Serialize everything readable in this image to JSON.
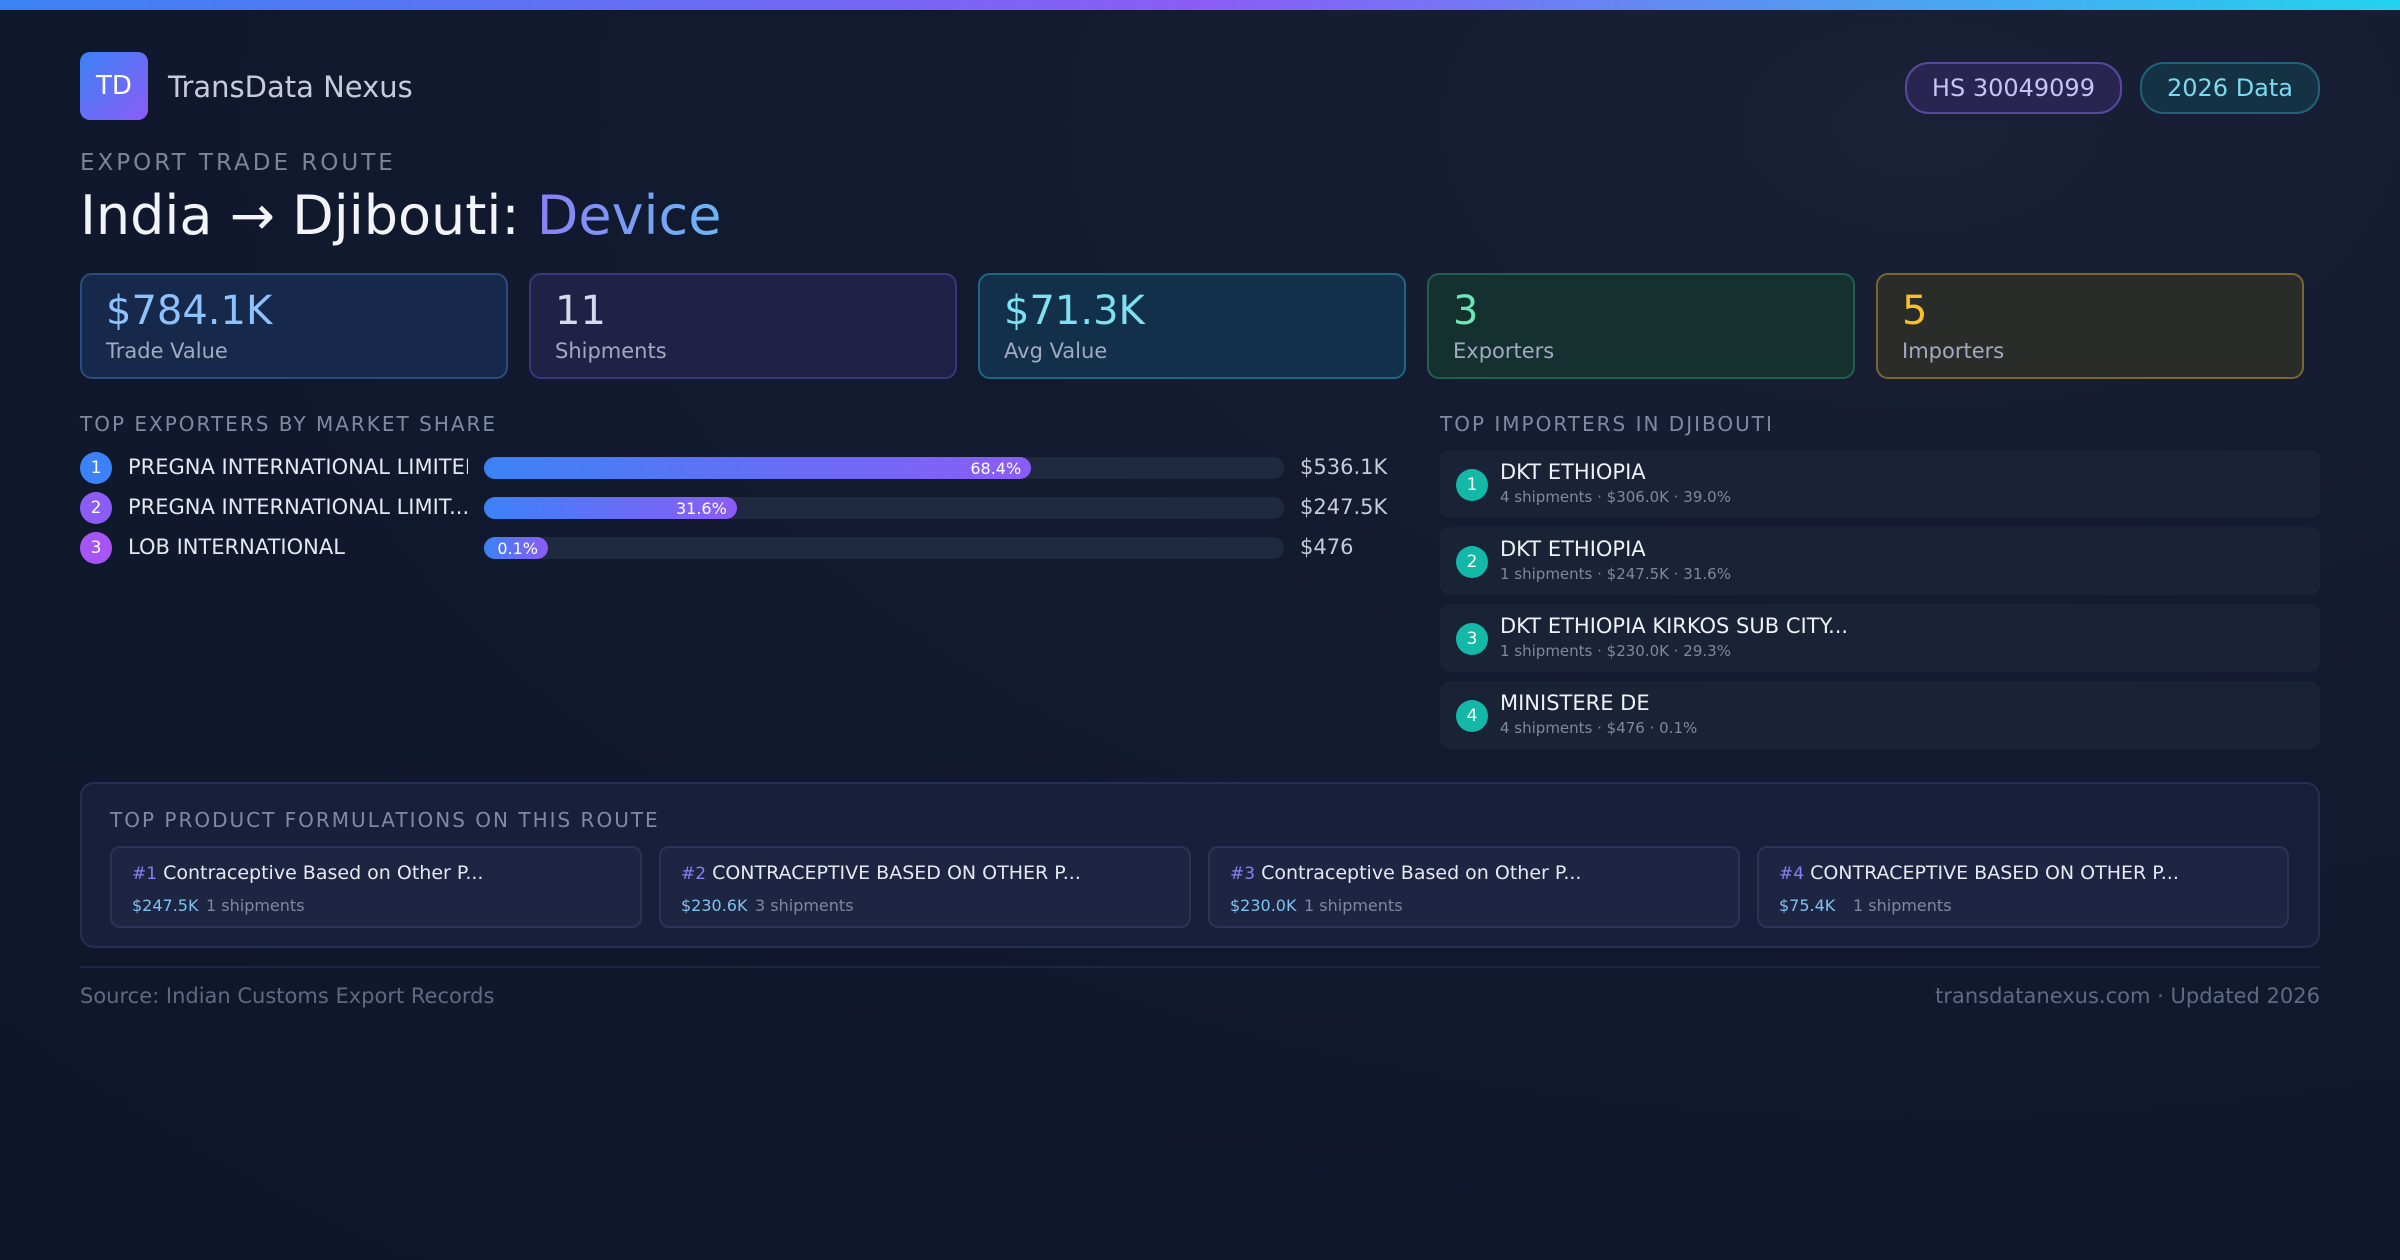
{
  "brand": {
    "logo_text": "TD",
    "name": "TransData Nexus",
    "accent_start": "#3b82f6",
    "accent_end": "#8b5cf6"
  },
  "badges": {
    "hs_code": "HS 30049099",
    "year": "2026 Data"
  },
  "route": {
    "eyebrow": "EXPORT TRADE ROUTE",
    "origin": "India",
    "arrow": "→",
    "destination": "Djibouti:",
    "product": "Device"
  },
  "stats": [
    {
      "value": "$784.1K",
      "label": "Trade Value",
      "color": "#8ec2ff"
    },
    {
      "value": "11",
      "label": "Shipments",
      "color": "#d6d9ee"
    },
    {
      "value": "$71.3K",
      "label": "Avg Value",
      "color": "#7fe0f2"
    },
    {
      "value": "3",
      "label": "Exporters",
      "color": "#6ee7b7"
    },
    {
      "value": "5",
      "label": "Importers",
      "color": "#fbbf24"
    }
  ],
  "exporters": {
    "heading": "TOP EXPORTERS BY MARKET SHARE",
    "items": [
      {
        "rank": "1",
        "name": "PREGNA INTERNATIONAL LIMITED",
        "share": 68.4,
        "share_label": "68.4%",
        "value": "$536.1K",
        "rank_color": "#3b82f6"
      },
      {
        "rank": "2",
        "name": "PREGNA INTERNATIONAL LIMIT...",
        "share": 31.6,
        "share_label": "31.6%",
        "value": "$247.5K",
        "rank_color": "#8b5cf6"
      },
      {
        "rank": "3",
        "name": "LOB INTERNATIONAL",
        "share": 0.1,
        "share_label": "0.1%",
        "value": "$476",
        "rank_color": "#a855f7"
      }
    ]
  },
  "importers": {
    "heading": "TOP IMPORTERS IN DJIBOUTI",
    "items": [
      {
        "rank": "1",
        "name": "DKT ETHIOPIA",
        "meta": "4 shipments · $306.0K · 39.0%"
      },
      {
        "rank": "2",
        "name": "DKT ETHIOPIA",
        "meta": "1 shipments · $247.5K · 31.6%"
      },
      {
        "rank": "3",
        "name": "DKT ETHIOPIA KIRKOS SUB CITY...",
        "meta": "1 shipments · $230.0K · 29.3%"
      },
      {
        "rank": "4",
        "name": "MINISTERE DE",
        "meta": "4 shipments · $476 · 0.1%"
      }
    ]
  },
  "formulations": {
    "heading": "TOP PRODUCT FORMULATIONS ON THIS ROUTE",
    "items": [
      {
        "num": "#1",
        "name": "Contraceptive Based on Other P...",
        "value": "$247.5K",
        "shipments": "1 shipments"
      },
      {
        "num": "#2",
        "name": "CONTRACEPTIVE BASED ON OTHER P...",
        "value": "$230.6K",
        "shipments": "3 shipments"
      },
      {
        "num": "#3",
        "name": "Contraceptive Based on Other P...",
        "value": "$230.0K",
        "shipments": "1 shipments"
      },
      {
        "num": "#4",
        "name": "CONTRACEPTIVE BASED ON OTHER P...",
        "value": "$75.4K",
        "shipments": "1 shipments"
      }
    ]
  },
  "footer": {
    "source": "Source: Indian Customs Export Records",
    "site": "transdatanexus.com · Updated 2026"
  }
}
